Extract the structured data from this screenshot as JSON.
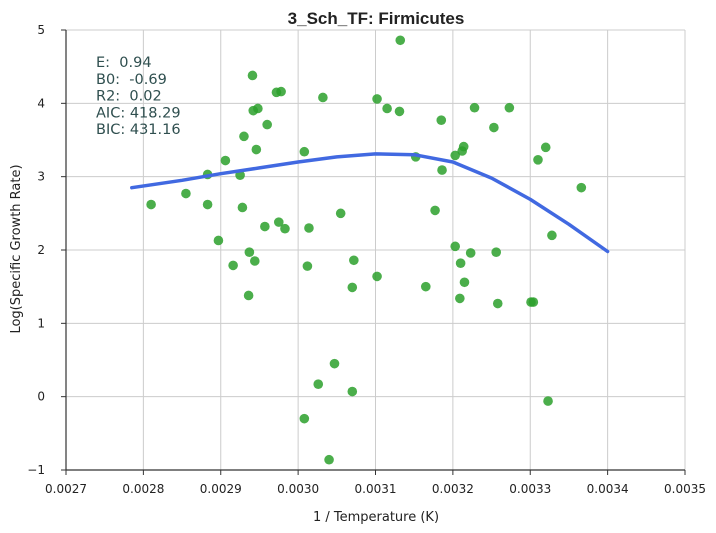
{
  "chart_data": {
    "type": "scatter",
    "title": "3_Sch_TF: Firmicutes",
    "xlabel": "1 / Temperature (K)",
    "ylabel": "Log(Specific Growth Rate)",
    "xlim": [
      0.0027,
      0.0035
    ],
    "ylim": [
      -1,
      5
    ],
    "xticks": [
      "0.0027",
      "0.0028",
      "0.0029",
      "0.0030",
      "0.0031",
      "0.0032",
      "0.0033",
      "0.0034",
      "0.0035"
    ],
    "yticks": [
      "5",
      "4",
      "3",
      "2",
      "1",
      "0",
      "−1"
    ],
    "grid": true,
    "colors": {
      "points": "#2ca02c",
      "fit": "#4169e1",
      "stats_text": "#2f4f4f"
    },
    "stats": [
      "E:  0.94",
      "B0:  -0.69",
      "R2:  0.02",
      "AIC: 418.29",
      "BIC: 431.16"
    ],
    "points": [
      [
        0.00281,
        2.62
      ],
      [
        0.002855,
        2.77
      ],
      [
        0.002883,
        3.03
      ],
      [
        0.002883,
        2.62
      ],
      [
        0.002897,
        2.13
      ],
      [
        0.002906,
        3.22
      ],
      [
        0.002916,
        1.79
      ],
      [
        0.002925,
        3.02
      ],
      [
        0.002928,
        2.58
      ],
      [
        0.00293,
        3.55
      ],
      [
        0.002936,
        1.38
      ],
      [
        0.002937,
        1.97
      ],
      [
        0.002941,
        4.38
      ],
      [
        0.002942,
        3.9
      ],
      [
        0.002944,
        1.85
      ],
      [
        0.002946,
        3.37
      ],
      [
        0.002948,
        3.93
      ],
      [
        0.002957,
        2.32
      ],
      [
        0.00296,
        3.71
      ],
      [
        0.002972,
        4.15
      ],
      [
        0.002975,
        2.38
      ],
      [
        0.002978,
        4.16
      ],
      [
        0.002983,
        2.29
      ],
      [
        0.003008,
        3.34
      ],
      [
        0.003008,
        -0.3
      ],
      [
        0.003012,
        1.78
      ],
      [
        0.003014,
        2.3
      ],
      [
        0.003026,
        0.17
      ],
      [
        0.003032,
        4.08
      ],
      [
        0.00304,
        -0.86
      ],
      [
        0.003047,
        0.45
      ],
      [
        0.003055,
        2.5
      ],
      [
        0.00307,
        0.07
      ],
      [
        0.00307,
        1.49
      ],
      [
        0.003072,
        1.86
      ],
      [
        0.003102,
        4.06
      ],
      [
        0.003102,
        1.64
      ],
      [
        0.003115,
        3.93
      ],
      [
        0.003131,
        3.89
      ],
      [
        0.003132,
        4.86
      ],
      [
        0.003152,
        3.27
      ],
      [
        0.003165,
        1.5
      ],
      [
        0.003177,
        2.54
      ],
      [
        0.003185,
        3.77
      ],
      [
        0.003186,
        3.09
      ],
      [
        0.003203,
        3.29
      ],
      [
        0.003203,
        2.05
      ],
      [
        0.003209,
        1.34
      ],
      [
        0.00321,
        1.82
      ],
      [
        0.003212,
        3.35
      ],
      [
        0.003214,
        3.41
      ],
      [
        0.003215,
        1.56
      ],
      [
        0.003223,
        1.96
      ],
      [
        0.003228,
        3.94
      ],
      [
        0.003253,
        3.67
      ],
      [
        0.003256,
        1.97
      ],
      [
        0.003258,
        1.27
      ],
      [
        0.003273,
        3.94
      ],
      [
        0.003301,
        1.29
      ],
      [
        0.003304,
        1.29
      ],
      [
        0.00331,
        3.23
      ],
      [
        0.00332,
        3.4
      ],
      [
        0.003323,
        -0.06
      ],
      [
        0.003328,
        2.2
      ],
      [
        0.003366,
        2.85
      ]
    ],
    "fit_line": {
      "x": [
        0.002785,
        0.00285,
        0.0029,
        0.00295,
        0.003,
        0.00305,
        0.0031,
        0.00315,
        0.0032,
        0.00325,
        0.0033,
        0.00335,
        0.0034
      ],
      "y": [
        2.85,
        2.95,
        3.04,
        3.12,
        3.2,
        3.27,
        3.31,
        3.3,
        3.2,
        2.98,
        2.69,
        2.35,
        1.98
      ]
    }
  }
}
